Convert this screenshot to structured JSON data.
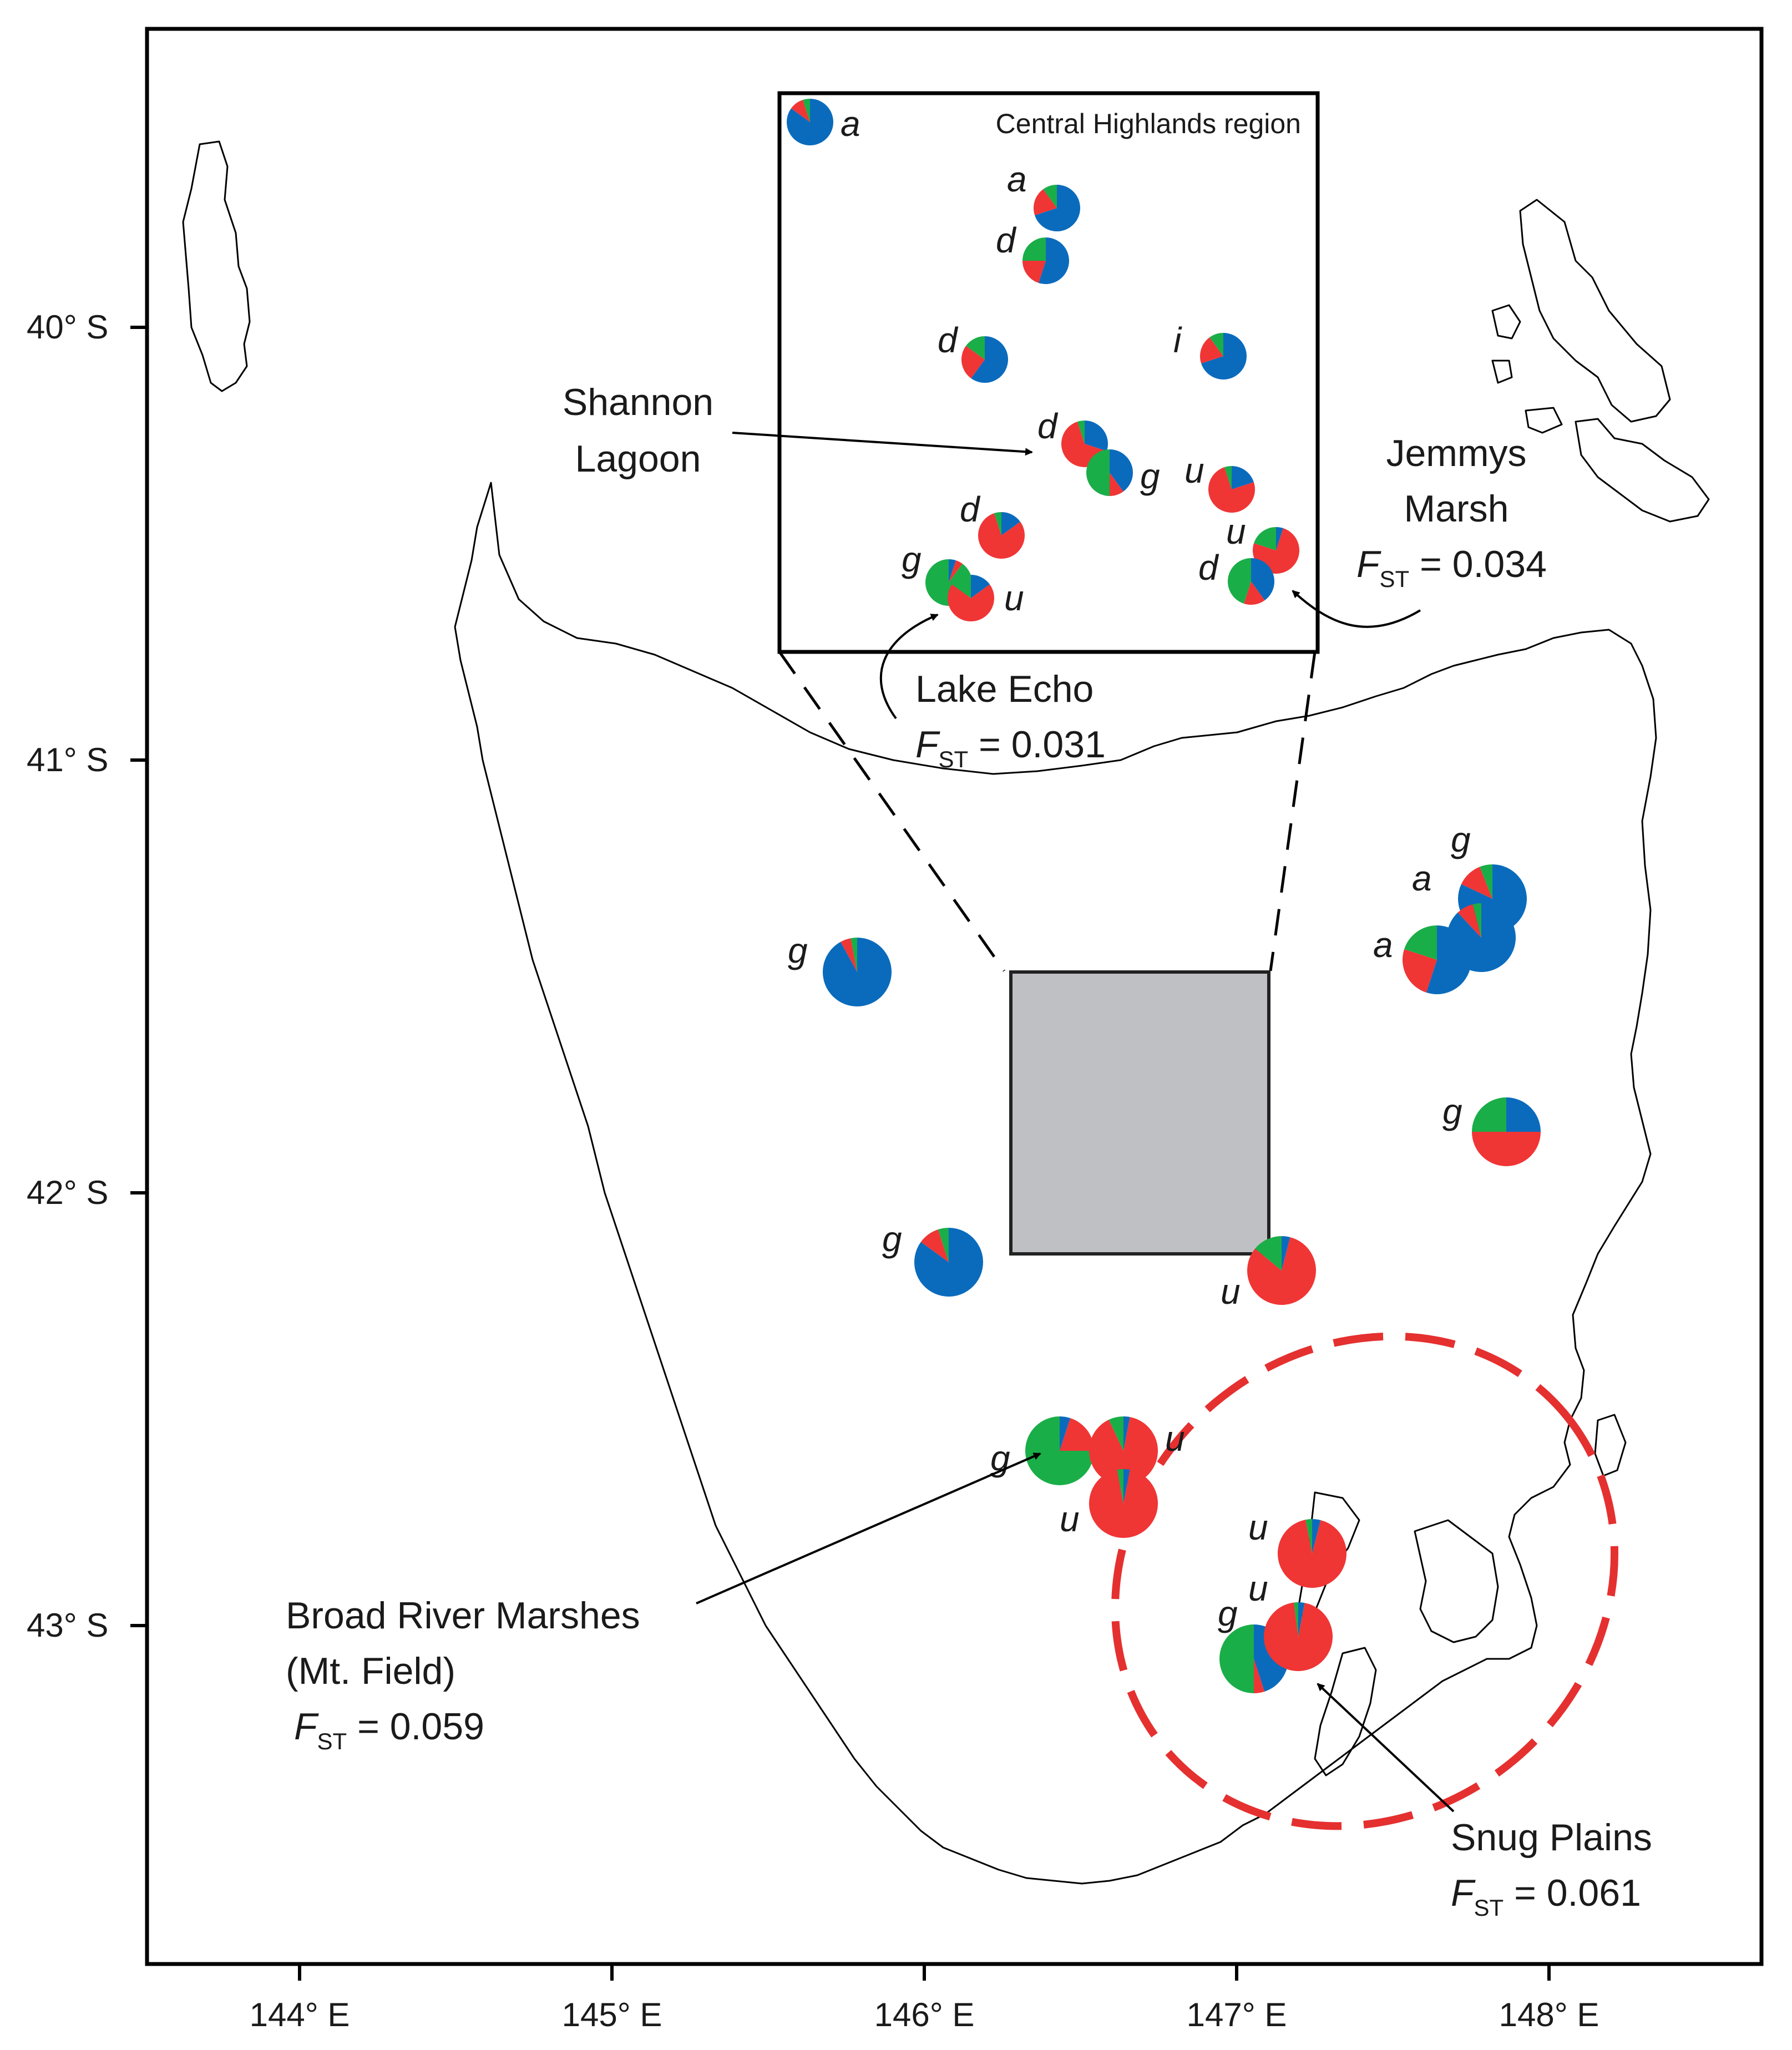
{
  "axes": {
    "x_ticks": [
      {
        "label": "144° E",
        "lon": 144
      },
      {
        "label": "145° E",
        "lon": 145
      },
      {
        "label": "146° E",
        "lon": 146
      },
      {
        "label": "147° E",
        "lon": 147
      },
      {
        "label": "148° E",
        "lon": 148
      }
    ],
    "y_ticks": [
      {
        "label": "40° S",
        "lat": -40
      },
      {
        "label": "41° S",
        "lat": -41
      },
      {
        "label": "42° S",
        "lat": -42
      },
      {
        "label": "43° S",
        "lat": -43
      }
    ]
  },
  "inset": {
    "title": "Central Highlands region"
  },
  "colors": {
    "blue": "#0a6bbd",
    "red": "#f03535",
    "green": "#1aae48",
    "ellipse": "#e53030",
    "inset_fill": "#bfc0c3"
  },
  "populations": {
    "main": [
      {
        "letter": "g",
        "slices": {
          "blue": 0.92,
          "red": 0.05,
          "green": 0.03
        }
      },
      {
        "letter": "g",
        "slices": {
          "blue": 0.85,
          "red": 0.1,
          "green": 0.05
        }
      },
      {
        "letter": "u",
        "slices": {
          "blue": 0.04,
          "red": 0.82,
          "green": 0.14
        }
      },
      {
        "letter": "g",
        "slices": {
          "blue": 0.82,
          "red": 0.12,
          "green": 0.06
        }
      },
      {
        "letter": "a",
        "slices": {
          "blue": 0.88,
          "red": 0.08,
          "green": 0.04
        }
      },
      {
        "letter": "a",
        "slices": {
          "blue": 0.55,
          "red": 0.25,
          "green": 0.2
        }
      },
      {
        "letter": "g",
        "slices": {
          "blue": 0.25,
          "red": 0.5,
          "green": 0.25
        }
      },
      {
        "letter": "g",
        "slices": {
          "blue": 0.05,
          "red": 0.2,
          "green": 0.75
        }
      },
      {
        "letter": "u",
        "slices": {
          "blue": 0.03,
          "red": 0.9,
          "green": 0.07
        }
      },
      {
        "letter": "u",
        "slices": {
          "blue": 0.03,
          "red": 0.94,
          "green": 0.03
        }
      },
      {
        "letter": "u",
        "slices": {
          "blue": 0.04,
          "red": 0.93,
          "green": 0.03
        }
      },
      {
        "letter": "g",
        "slices": {
          "blue": 0.45,
          "red": 0.05,
          "green": 0.5
        }
      },
      {
        "letter": "u",
        "slices": {
          "blue": 0.03,
          "red": 0.95,
          "green": 0.02
        }
      }
    ],
    "inset": [
      {
        "letter": "a",
        "slices": {
          "blue": 0.85,
          "red": 0.1,
          "green": 0.05
        }
      },
      {
        "letter": "a",
        "slices": {
          "blue": 0.7,
          "red": 0.2,
          "green": 0.1
        }
      },
      {
        "letter": "d",
        "slices": {
          "blue": 0.55,
          "red": 0.2,
          "green": 0.25
        }
      },
      {
        "letter": "d",
        "slices": {
          "blue": 0.6,
          "red": 0.25,
          "green": 0.15
        }
      },
      {
        "letter": "i",
        "slices": {
          "blue": 0.7,
          "red": 0.2,
          "green": 0.1
        }
      },
      {
        "letter": "d",
        "slices": {
          "blue": 0.3,
          "red": 0.65,
          "green": 0.05
        }
      },
      {
        "letter": "g",
        "slices": {
          "blue": 0.4,
          "red": 0.1,
          "green": 0.5
        }
      },
      {
        "letter": "u",
        "slices": {
          "blue": 0.2,
          "red": 0.75,
          "green": 0.05
        }
      },
      {
        "letter": "d",
        "slices": {
          "blue": 0.15,
          "red": 0.8,
          "green": 0.05
        }
      },
      {
        "letter": "u",
        "slices": {
          "blue": 0.05,
          "red": 0.75,
          "green": 0.2
        }
      },
      {
        "letter": "d",
        "slices": {
          "blue": 0.4,
          "red": 0.15,
          "green": 0.45
        }
      },
      {
        "letter": "g",
        "slices": {
          "blue": 0.05,
          "red": 0.05,
          "green": 0.9
        }
      },
      {
        "letter": "u",
        "slices": {
          "blue": 0.15,
          "red": 0.7,
          "green": 0.15
        }
      }
    ]
  },
  "callouts": {
    "shannon": {
      "lines": [
        "Shannon",
        "Lagoon"
      ]
    },
    "jemmys": {
      "lines": [
        "Jemmys",
        "Marsh"
      ],
      "fst_value": " = 0.034"
    },
    "lake_echo": {
      "lines": [
        "Lake Echo"
      ],
      "fst_value": " = 0.031"
    },
    "broad_river": {
      "lines": [
        "Broad River Marshes",
        "(Mt. Field)"
      ],
      "fst_value": " = 0.059"
    },
    "snug": {
      "lines": [
        "Snug Plains"
      ],
      "fst_value": " = 0.061"
    }
  },
  "fst_symbol": {
    "main": "F",
    "sub": "ST"
  }
}
